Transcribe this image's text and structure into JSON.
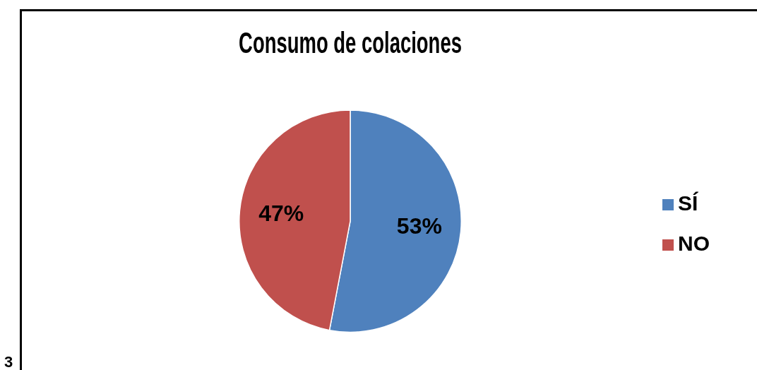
{
  "chart_data": {
    "type": "pie",
    "title": "Consumo de colaciones",
    "categories": [
      "SÍ",
      "NO"
    ],
    "values": [
      53,
      47
    ],
    "colors": [
      "#4f81bd",
      "#c0504d"
    ],
    "value_labels": [
      "53%",
      "47%"
    ],
    "legend": "right",
    "annotations": [
      "3"
    ]
  }
}
